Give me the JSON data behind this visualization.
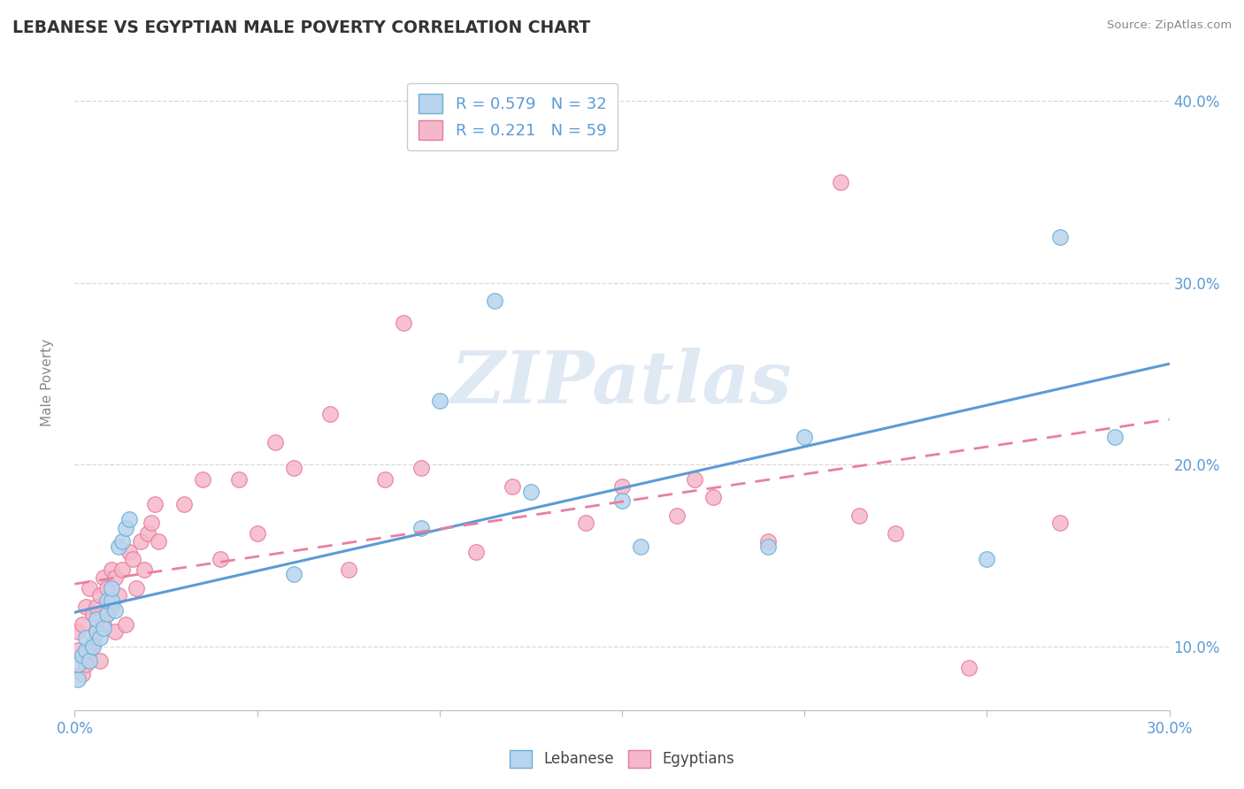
{
  "title": "LEBANESE VS EGYPTIAN MALE POVERTY CORRELATION CHART",
  "source": "Source: ZipAtlas.com",
  "xlabel": "",
  "ylabel": "Male Poverty",
  "xlim": [
    0.0,
    0.3
  ],
  "ylim": [
    0.065,
    0.425
  ],
  "xticks": [
    0.0,
    0.05,
    0.1,
    0.15,
    0.2,
    0.25,
    0.3
  ],
  "xtick_labels_show": [
    "0.0%",
    "",
    "",
    "",
    "",
    "",
    "30.0%"
  ],
  "yticks": [
    0.1,
    0.2,
    0.3,
    0.4
  ],
  "ytick_labels": [
    "10.0%",
    "20.0%",
    "30.0%",
    "40.0%"
  ],
  "R_lebanese": 0.579,
  "N_lebanese": 32,
  "R_egyptians": 0.221,
  "N_egyptians": 59,
  "lebanese_color": "#b8d4ee",
  "egyptian_color": "#f5b8ca",
  "lebanese_edge_color": "#6aaed6",
  "egyptian_edge_color": "#e8799a",
  "lebanese_line_color": "#5b9bd5",
  "egyptian_line_color": "#e87fa0",
  "background_color": "#ffffff",
  "grid_color": "#d9d9d9",
  "watermark_text": "ZIPatlas",
  "watermark_color": "#c5d8ec",
  "tick_label_color": "#5b9bd5",
  "ylabel_color": "#888888",
  "title_color": "#333333",
  "source_color": "#888888",
  "lebanese_x": [
    0.001,
    0.001,
    0.002,
    0.003,
    0.003,
    0.004,
    0.005,
    0.006,
    0.006,
    0.007,
    0.008,
    0.009,
    0.009,
    0.01,
    0.01,
    0.011,
    0.012,
    0.013,
    0.014,
    0.015,
    0.06,
    0.095,
    0.1,
    0.115,
    0.125,
    0.15,
    0.155,
    0.19,
    0.2,
    0.25,
    0.27,
    0.285
  ],
  "lebanese_y": [
    0.082,
    0.09,
    0.095,
    0.098,
    0.105,
    0.092,
    0.1,
    0.108,
    0.115,
    0.105,
    0.11,
    0.118,
    0.125,
    0.125,
    0.132,
    0.12,
    0.155,
    0.158,
    0.165,
    0.17,
    0.14,
    0.165,
    0.235,
    0.29,
    0.185,
    0.18,
    0.155,
    0.155,
    0.215,
    0.148,
    0.325,
    0.215
  ],
  "egyptian_x": [
    0.001,
    0.001,
    0.002,
    0.002,
    0.003,
    0.003,
    0.004,
    0.004,
    0.005,
    0.005,
    0.006,
    0.006,
    0.007,
    0.007,
    0.008,
    0.008,
    0.009,
    0.009,
    0.01,
    0.01,
    0.011,
    0.011,
    0.012,
    0.013,
    0.014,
    0.015,
    0.016,
    0.017,
    0.018,
    0.019,
    0.02,
    0.021,
    0.022,
    0.023,
    0.03,
    0.035,
    0.04,
    0.045,
    0.05,
    0.055,
    0.06,
    0.07,
    0.075,
    0.085,
    0.09,
    0.095,
    0.11,
    0.12,
    0.14,
    0.15,
    0.165,
    0.17,
    0.175,
    0.19,
    0.21,
    0.215,
    0.225,
    0.245,
    0.27
  ],
  "egyptian_y": [
    0.098,
    0.108,
    0.112,
    0.085,
    0.122,
    0.09,
    0.098,
    0.132,
    0.102,
    0.118,
    0.108,
    0.122,
    0.128,
    0.092,
    0.112,
    0.138,
    0.118,
    0.132,
    0.122,
    0.142,
    0.108,
    0.138,
    0.128,
    0.142,
    0.112,
    0.152,
    0.148,
    0.132,
    0.158,
    0.142,
    0.162,
    0.168,
    0.178,
    0.158,
    0.178,
    0.192,
    0.148,
    0.192,
    0.162,
    0.212,
    0.198,
    0.228,
    0.142,
    0.192,
    0.278,
    0.198,
    0.152,
    0.188,
    0.168,
    0.188,
    0.172,
    0.192,
    0.182,
    0.158,
    0.355,
    0.172,
    0.162,
    0.088,
    0.168
  ]
}
